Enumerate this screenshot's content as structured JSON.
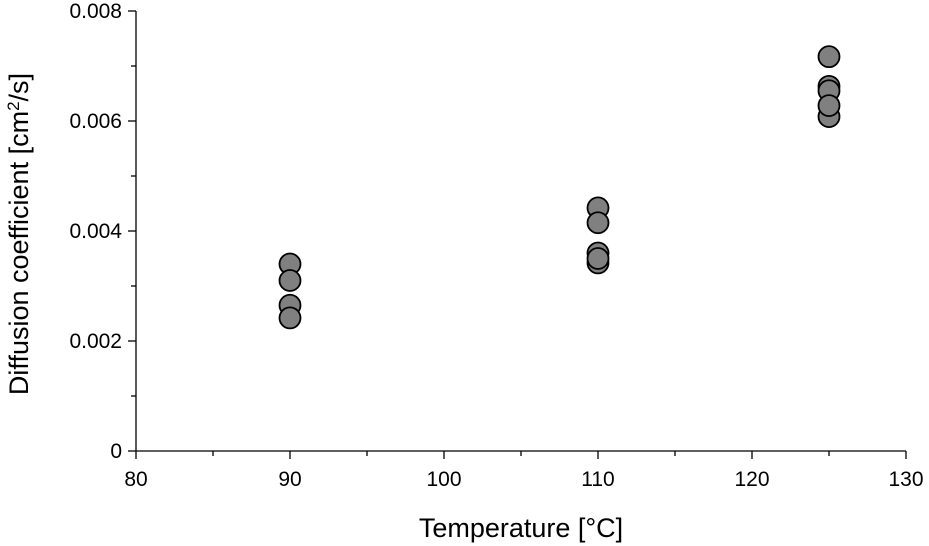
{
  "chart_data": {
    "type": "scatter",
    "xlabel": "Temperature [°C]",
    "ylabel_main": "Diffusion coefficient [cm",
    "ylabel_sup": "2",
    "ylabel_tail": "/s]",
    "xlim": [
      80,
      130
    ],
    "ylim": [
      0,
      0.008
    ],
    "x_ticks": [
      80,
      90,
      100,
      110,
      120,
      130
    ],
    "x_tick_labels": [
      "80",
      "90",
      "100",
      "110",
      "120",
      "130"
    ],
    "x_minor_ticks": [
      85,
      95,
      105,
      115,
      125
    ],
    "y_ticks": [
      0,
      0.002,
      0.004,
      0.006,
      0.008
    ],
    "y_tick_labels": [
      "0",
      "0.002",
      "0.004",
      "0.006",
      "0.008"
    ],
    "y_minor_ticks": [
      0.001,
      0.003,
      0.005,
      0.007
    ],
    "grid": false,
    "marker_color": "#808080",
    "series": [
      {
        "points": [
          {
            "x": 90,
            "y": 0.0034
          },
          {
            "x": 90,
            "y": 0.0031
          },
          {
            "x": 90,
            "y": 0.00265
          },
          {
            "x": 90,
            "y": 0.00242
          },
          {
            "x": 110,
            "y": 0.00442
          },
          {
            "x": 110,
            "y": 0.00415
          },
          {
            "x": 110,
            "y": 0.0036
          },
          {
            "x": 110,
            "y": 0.00342
          },
          {
            "x": 110,
            "y": 0.0035
          },
          {
            "x": 125,
            "y": 0.00717
          },
          {
            "x": 125,
            "y": 0.00663
          },
          {
            "x": 125,
            "y": 0.00655
          },
          {
            "x": 125,
            "y": 0.00608
          },
          {
            "x": 125,
            "y": 0.00628
          }
        ]
      }
    ]
  }
}
